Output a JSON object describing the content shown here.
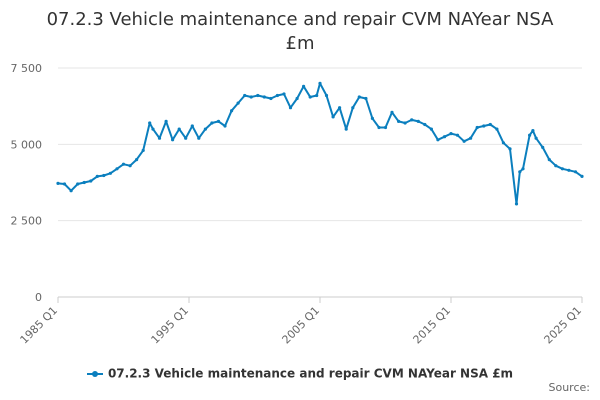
{
  "chart_data": {
    "type": "line",
    "title": "07.2.3 Vehicle maintenance and repair CVM NAYear NSA £m",
    "title_lines": [
      "07.2.3 Vehicle maintenance and repair CVM NAYear NSA",
      "£m"
    ],
    "xlabel": "",
    "ylabel": "",
    "x_range": [
      "1985 Q1",
      "2025 Q1"
    ],
    "xticks": [
      "1985 Q1",
      "1995 Q1",
      "2005 Q1",
      "2015 Q1",
      "2025 Q1"
    ],
    "ylim": [
      0,
      7500
    ],
    "yticks": [
      0,
      2500,
      5000,
      7500
    ],
    "ytick_labels": [
      "0",
      "2 500",
      "5 000",
      "7 500"
    ],
    "grid": "horizontal",
    "legend_position": "bottom",
    "series": [
      {
        "name": "07.2.3 Vehicle maintenance and repair CVM NAYear NSA £m",
        "color": "#0b7fbe",
        "points": [
          [
            "1985 Q1",
            3720
          ],
          [
            "1985 Q3",
            3700
          ],
          [
            "1986 Q1",
            3480
          ],
          [
            "1986 Q3",
            3700
          ],
          [
            "1987 Q1",
            3750
          ],
          [
            "1987 Q3",
            3800
          ],
          [
            "1988 Q1",
            3950
          ],
          [
            "1988 Q3",
            3980
          ],
          [
            "1989 Q1",
            4050
          ],
          [
            "1989 Q3",
            4200
          ],
          [
            "1990 Q1",
            4350
          ],
          [
            "1990 Q3",
            4300
          ],
          [
            "1991 Q1",
            4500
          ],
          [
            "1991 Q3",
            4800
          ],
          [
            "1992 Q1",
            5700
          ],
          [
            "1992 Q2",
            5500
          ],
          [
            "1992 Q4",
            5200
          ],
          [
            "1993 Q2",
            5750
          ],
          [
            "1993 Q4",
            5150
          ],
          [
            "1994 Q2",
            5500
          ],
          [
            "1994 Q4",
            5200
          ],
          [
            "1995 Q2",
            5600
          ],
          [
            "1995 Q4",
            5200
          ],
          [
            "1996 Q2",
            5500
          ],
          [
            "1996 Q4",
            5700
          ],
          [
            "1997 Q2",
            5750
          ],
          [
            "1997 Q4",
            5600
          ],
          [
            "1998 Q2",
            6100
          ],
          [
            "1998 Q4",
            6350
          ],
          [
            "1999 Q2",
            6600
          ],
          [
            "1999 Q4",
            6550
          ],
          [
            "2000 Q2",
            6600
          ],
          [
            "2000 Q4",
            6550
          ],
          [
            "2001 Q2",
            6500
          ],
          [
            "2001 Q4",
            6600
          ],
          [
            "2002 Q2",
            6650
          ],
          [
            "2002 Q4",
            6200
          ],
          [
            "2003 Q2",
            6500
          ],
          [
            "2003 Q4",
            6900
          ],
          [
            "2004 Q2",
            6550
          ],
          [
            "2004 Q4",
            6600
          ],
          [
            "2005 Q1",
            7000
          ],
          [
            "2005 Q3",
            6600
          ],
          [
            "2006 Q1",
            5900
          ],
          [
            "2006 Q3",
            6200
          ],
          [
            "2007 Q1",
            5500
          ],
          [
            "2007 Q3",
            6200
          ],
          [
            "2008 Q1",
            6550
          ],
          [
            "2008 Q3",
            6500
          ],
          [
            "2009 Q1",
            5850
          ],
          [
            "2009 Q3",
            5550
          ],
          [
            "2010 Q1",
            5550
          ],
          [
            "2010 Q3",
            6050
          ],
          [
            "2011 Q1",
            5750
          ],
          [
            "2011 Q3",
            5700
          ],
          [
            "2012 Q1",
            5800
          ],
          [
            "2012 Q3",
            5750
          ],
          [
            "2013 Q1",
            5650
          ],
          [
            "2013 Q3",
            5500
          ],
          [
            "2014 Q1",
            5150
          ],
          [
            "2014 Q3",
            5250
          ],
          [
            "2015 Q1",
            5350
          ],
          [
            "2015 Q3",
            5300
          ],
          [
            "2016 Q1",
            5100
          ],
          [
            "2016 Q3",
            5200
          ],
          [
            "2017 Q1",
            5550
          ],
          [
            "2017 Q3",
            5600
          ],
          [
            "2018 Q1",
            5650
          ],
          [
            "2018 Q3",
            5500
          ],
          [
            "2019 Q1",
            5050
          ],
          [
            "2019 Q3",
            4850
          ],
          [
            "2020 Q1",
            3050
          ],
          [
            "2020 Q2",
            4100
          ],
          [
            "2020 Q3",
            4200
          ],
          [
            "2021 Q1",
            5300
          ],
          [
            "2021 Q2",
            5450
          ],
          [
            "2021 Q3",
            5200
          ],
          [
            "2022 Q1",
            4900
          ],
          [
            "2022 Q3",
            4500
          ],
          [
            "2023 Q1",
            4300
          ],
          [
            "2023 Q3",
            4200
          ],
          [
            "2024 Q1",
            4150
          ],
          [
            "2024 Q3",
            4100
          ],
          [
            "2025 Q1",
            3950
          ]
        ]
      }
    ]
  },
  "legend": {
    "label": "07.2.3 Vehicle maintenance and repair CVM NAYear NSA £m"
  },
  "footer": {
    "source_label": "Source:"
  }
}
